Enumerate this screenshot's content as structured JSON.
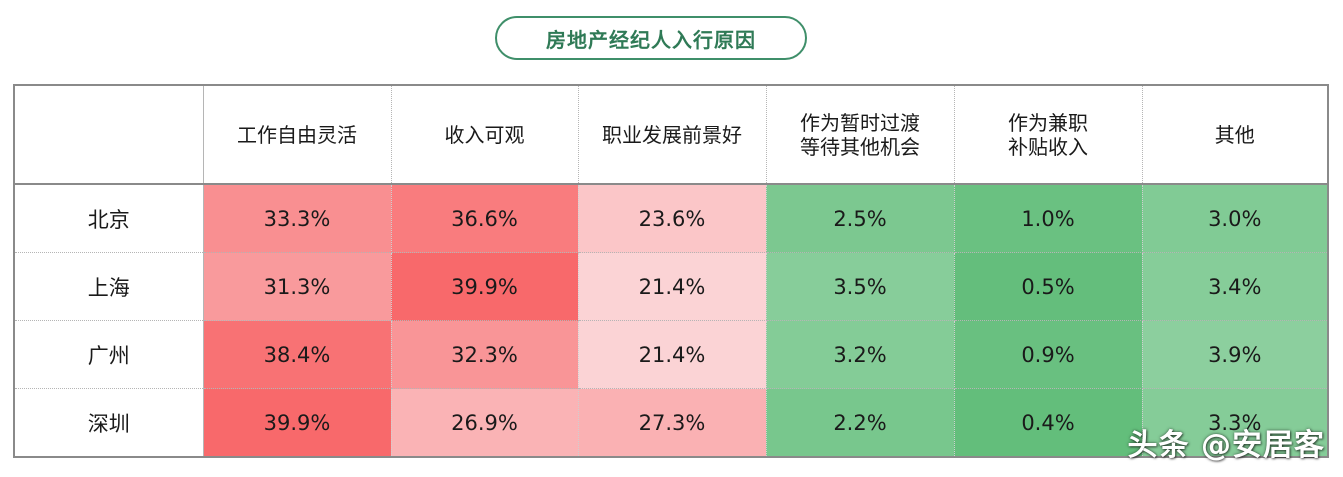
{
  "chart_data": {
    "type": "heatmap",
    "title": "房地产经纪人入行原因",
    "columns": [
      [
        "工作自由灵活"
      ],
      [
        "收入可观"
      ],
      [
        "职业发展前景好"
      ],
      [
        "作为暂时过渡",
        "等待其他机会"
      ],
      [
        "作为兼职",
        "补贴收入"
      ],
      [
        "其他"
      ]
    ],
    "rows": [
      {
        "city": "北京",
        "values": [
          "33.3%",
          "36.6%",
          "23.6%",
          "2.5%",
          "1.0%",
          "3.0%"
        ]
      },
      {
        "city": "上海",
        "values": [
          "31.3%",
          "39.9%",
          "21.4%",
          "3.5%",
          "0.5%",
          "3.4%"
        ]
      },
      {
        "city": "广州",
        "values": [
          "38.4%",
          "32.3%",
          "21.4%",
          "3.2%",
          "0.9%",
          "3.9%"
        ]
      },
      {
        "city": "深圳",
        "values": [
          "39.9%",
          "26.9%",
          "27.3%",
          "2.2%",
          "0.4%",
          "3.3%"
        ]
      }
    ],
    "color_scale": {
      "high_group": {
        "columns": [
          0,
          1,
          2
        ],
        "min_color": "#fbd3d5",
        "max_color": "#f8696b"
      },
      "low_group": {
        "columns": [
          3,
          4,
          5
        ],
        "min_color": "#63be7b",
        "max_color": "#8ccf9e"
      }
    }
  },
  "watermark": "头条 @安居客"
}
